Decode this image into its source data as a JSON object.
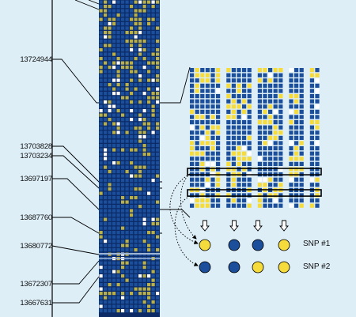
{
  "figure": {
    "positions": [
      "13724944",
      "13703828",
      "13703234",
      "13697197",
      "13687760",
      "13680772",
      "13672307",
      "13667631"
    ],
    "snp_labels": [
      "SNP #1",
      "SNP #2"
    ],
    "snp1_alleles": [
      "yellow",
      "blue",
      "blue",
      "yellow"
    ],
    "snp2_alleles": [
      "blue",
      "blue",
      "yellow",
      "yellow"
    ],
    "colors": {
      "background": "#ddeef7",
      "matrix_background": "#0b2a66",
      "blue_cell": "#1b4f9c",
      "yellow_cell": "#f5dc3c",
      "white_cell": "#ffffff",
      "highlight_box": "#000000"
    },
    "icons": [
      "down-arrow-icon",
      "dotted-curved-arrow-icon"
    ]
  }
}
